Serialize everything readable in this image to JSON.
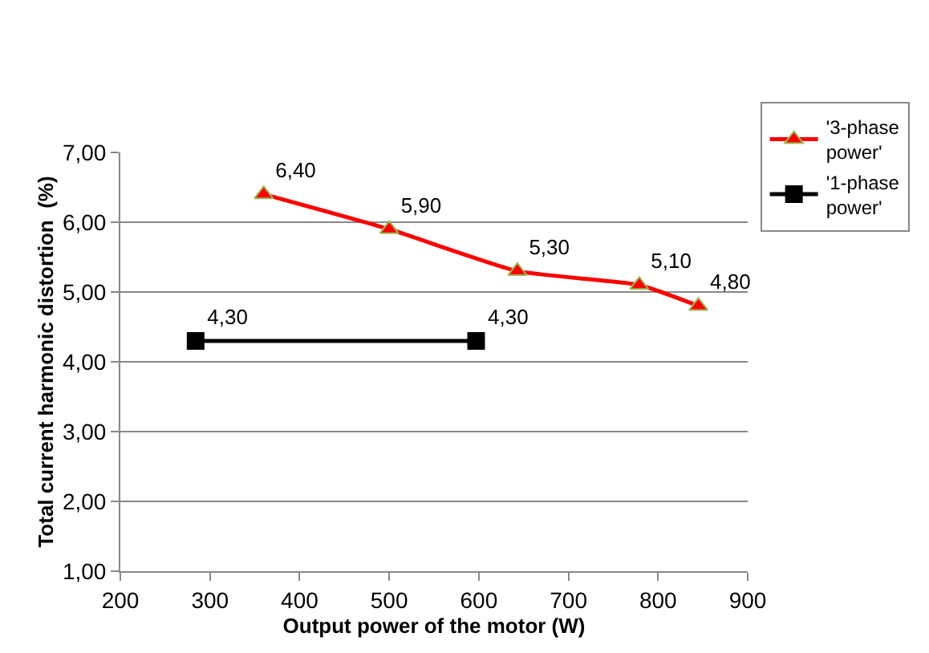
{
  "chart_data": {
    "type": "line",
    "xlabel": "Output power of the motor (W)",
    "ylabel": "Total current harmonic distortion  (%)",
    "series": [
      {
        "name": "'3-phase power'",
        "color": "#ff0000",
        "marker": "triangle",
        "x": [
          360,
          500,
          643,
          779,
          845
        ],
        "values": [
          6.4,
          5.9,
          5.3,
          5.1,
          4.8
        ],
        "value_labels": [
          "6,40",
          "5,90",
          "5,30",
          "5,10",
          "4,80"
        ]
      },
      {
        "name": "'1-phase power'",
        "color": "#000000",
        "marker": "square",
        "x": [
          284,
          597
        ],
        "values": [
          4.3,
          4.3
        ],
        "value_labels": [
          "4,30",
          "4,30"
        ]
      }
    ],
    "xlim": [
      200,
      900
    ],
    "xticks": [
      200,
      300,
      400,
      500,
      600,
      700,
      800,
      900
    ],
    "ylim": [
      1,
      7
    ],
    "yticks": [
      {
        "value": 1,
        "label": "1,00"
      },
      {
        "value": 2,
        "label": "2,00"
      },
      {
        "value": 3,
        "label": "3,00"
      },
      {
        "value": 4,
        "label": "4,00"
      },
      {
        "value": 5,
        "label": "5,00"
      },
      {
        "value": 6,
        "label": "6,00"
      },
      {
        "value": 7,
        "label": "7,00"
      }
    ],
    "grid": "y",
    "legend": "top right",
    "line_style": "solid"
  }
}
